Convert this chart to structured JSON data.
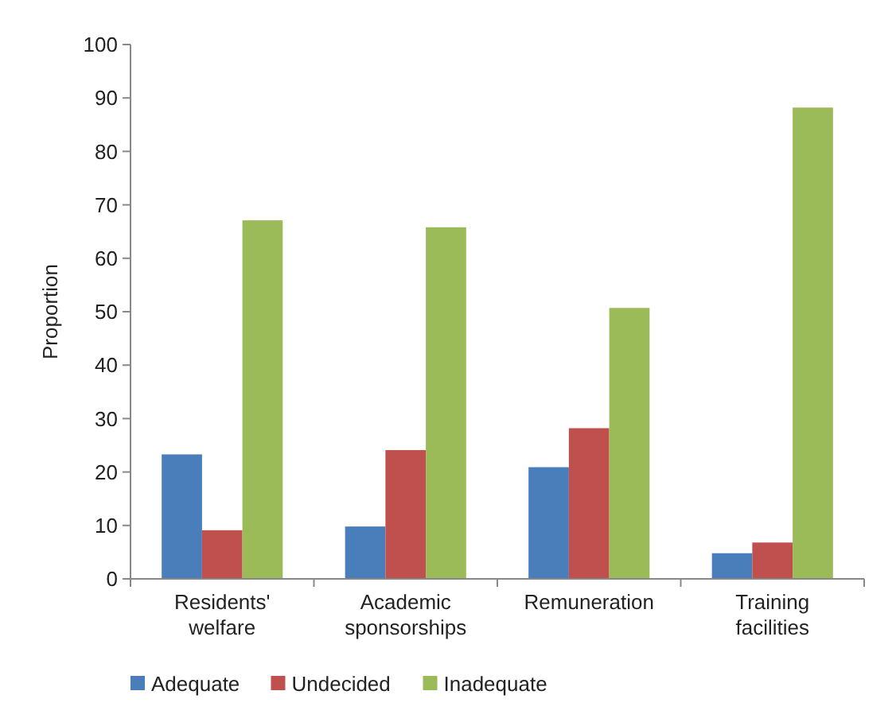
{
  "chart_data": {
    "type": "bar",
    "ylabel": "Proportion",
    "categories": [
      "Residents' welfare",
      "Academic sponsorships",
      "Remuneration",
      "Training facilities"
    ],
    "series": [
      {
        "name": "Adequate",
        "color": "#4a7ebb",
        "values": [
          23.3,
          9.8,
          20.9,
          4.8
        ]
      },
      {
        "name": "Undecided",
        "color": "#c0504d",
        "values": [
          9.1,
          24.1,
          28.2,
          6.8
        ]
      },
      {
        "name": "Inadequate",
        "color": "#9bbb59",
        "values": [
          67.1,
          65.8,
          50.7,
          88.2
        ]
      }
    ],
    "ylim": [
      0,
      100
    ],
    "yticks": [
      0,
      10,
      20,
      30,
      40,
      50,
      60,
      70,
      80,
      90,
      100
    ],
    "grid": false,
    "legend": "bottom"
  }
}
